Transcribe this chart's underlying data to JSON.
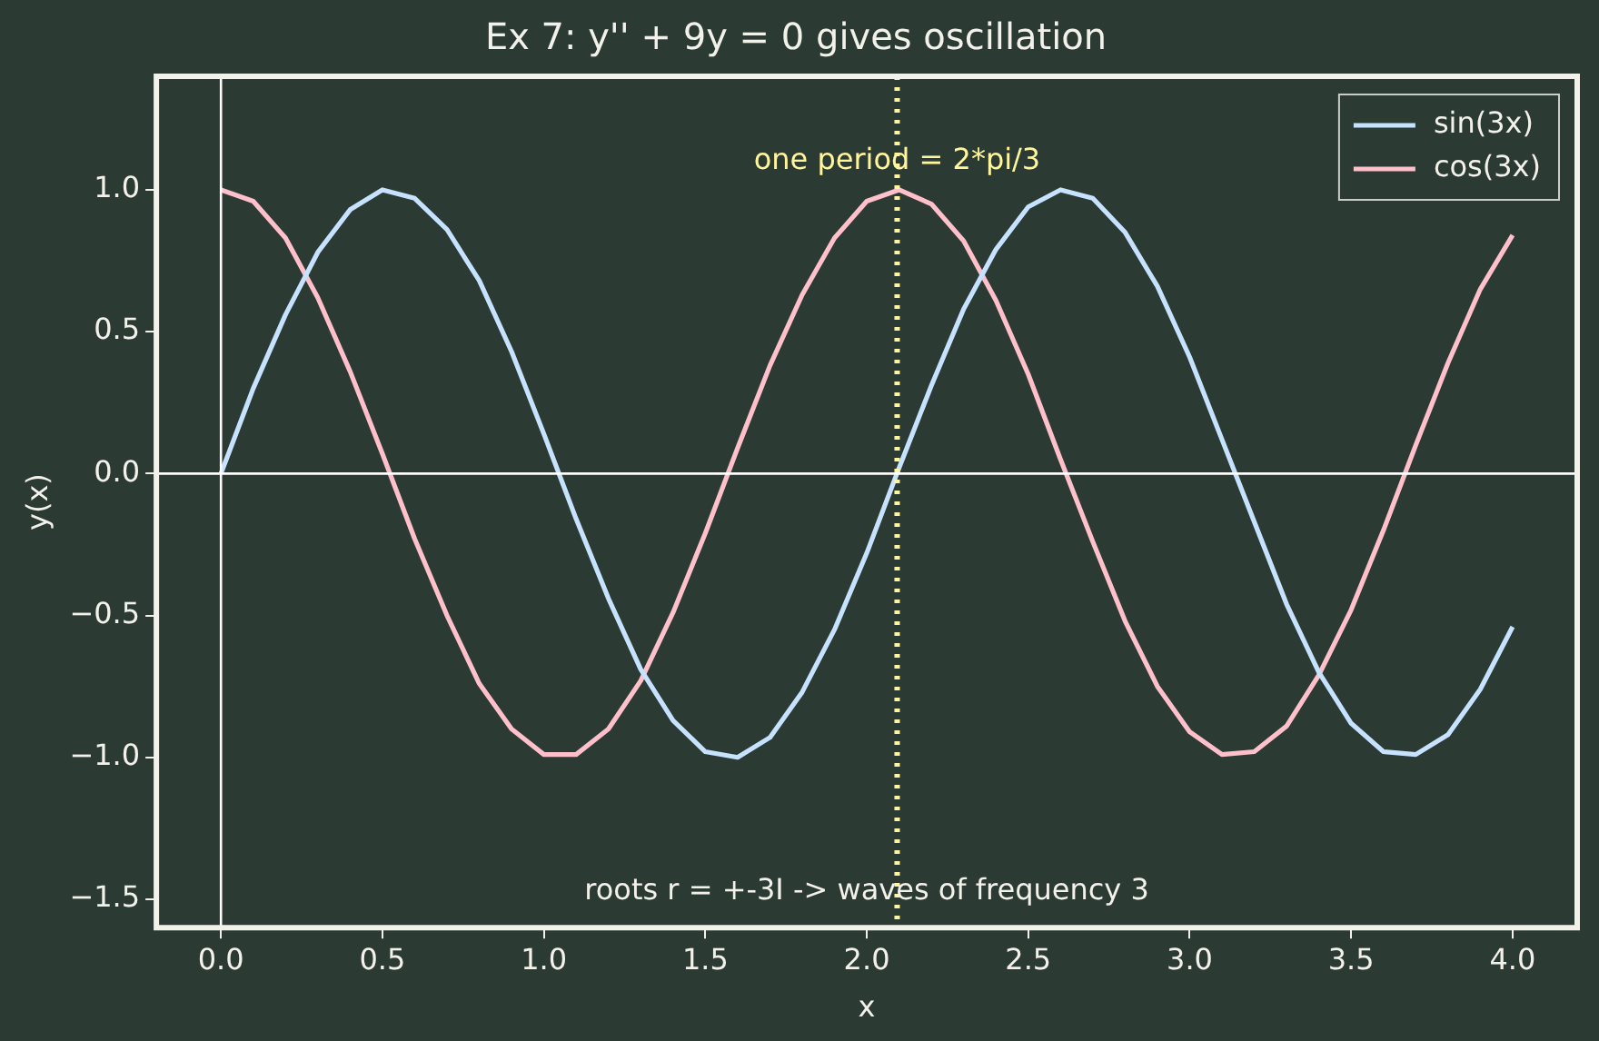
{
  "chart_data": {
    "type": "line",
    "title": "Ex 7: y'' + 9y = 0 gives oscillation",
    "xlabel": "x",
    "ylabel": "y(x)",
    "x": [
      0,
      0.1,
      0.2,
      0.3,
      0.4,
      0.5,
      0.6,
      0.7,
      0.8,
      0.9,
      1,
      1.1,
      1.2,
      1.3,
      1.4,
      1.5,
      1.6,
      1.7,
      1.8,
      1.9,
      2,
      2.1,
      2.2,
      2.3,
      2.4,
      2.5,
      2.6,
      2.7,
      2.8,
      2.9,
      3,
      3.1,
      3.2,
      3.3,
      3.4,
      3.5,
      3.6,
      3.7,
      3.8,
      3.9,
      4
    ],
    "series": [
      {
        "name": "sin(3x)",
        "color": "#c6e2ff",
        "values": [
          0,
          0.3,
          0.56,
          0.78,
          0.93,
          1.0,
          0.97,
          0.86,
          0.68,
          0.43,
          0.14,
          -0.16,
          -0.44,
          -0.69,
          -0.87,
          -0.98,
          -1.0,
          -0.93,
          -0.77,
          -0.55,
          -0.28,
          0.02,
          0.31,
          0.58,
          0.79,
          0.94,
          1.0,
          0.97,
          0.85,
          0.66,
          0.41,
          0.12,
          -0.17,
          -0.46,
          -0.7,
          -0.88,
          -0.98,
          -0.99,
          -0.92,
          -0.76,
          -0.54
        ]
      },
      {
        "name": "cos(3x)",
        "color": "#ffc0cb",
        "values": [
          1,
          0.96,
          0.83,
          0.62,
          0.36,
          0.07,
          -0.23,
          -0.5,
          -0.74,
          -0.9,
          -0.99,
          -0.99,
          -0.9,
          -0.73,
          -0.49,
          -0.21,
          0.09,
          0.38,
          0.63,
          0.83,
          0.96,
          1.0,
          0.95,
          0.82,
          0.61,
          0.35,
          0.05,
          -0.24,
          -0.52,
          -0.75,
          -0.91,
          -0.99,
          -0.98,
          -0.89,
          -0.71,
          -0.48,
          -0.2,
          0.1,
          0.39,
          0.65,
          0.84
        ]
      }
    ],
    "xlim": [
      -0.2,
      4.2
    ],
    "ylim": [
      -1.6,
      1.4
    ],
    "xticks": [
      {
        "value": 0,
        "label": "0.0"
      },
      {
        "value": 0.5,
        "label": "0.5"
      },
      {
        "value": 1,
        "label": "1.0"
      },
      {
        "value": 1.5,
        "label": "1.5"
      },
      {
        "value": 2,
        "label": "2.0"
      },
      {
        "value": 2.5,
        "label": "2.5"
      },
      {
        "value": 3,
        "label": "3.0"
      },
      {
        "value": 3.5,
        "label": "3.5"
      },
      {
        "value": 4,
        "label": "4.0"
      }
    ],
    "yticks": [
      {
        "value": -1.5,
        "label": "−1.5"
      },
      {
        "value": -1,
        "label": "−1.0"
      },
      {
        "value": -0.5,
        "label": "−0.5"
      },
      {
        "value": 0,
        "label": "0.0"
      },
      {
        "value": 0.5,
        "label": "0.5"
      },
      {
        "value": 1,
        "label": "1.0"
      }
    ],
    "ref_lines": [
      {
        "axis": "y",
        "value": 0,
        "color": "#ffffff",
        "line_style": "solid"
      },
      {
        "axis": "x",
        "value": 0,
        "color": "#ffffff",
        "line_style": "solid"
      },
      {
        "axis": "x",
        "value": 2.094,
        "label": "one period = 2*pi/3",
        "color": "#fff59d",
        "line_style": "dotted"
      }
    ],
    "annotations": [
      "roots r = +-3I -> waves of frequency 3"
    ],
    "legend": "top right",
    "grid": false,
    "marker": "none",
    "line_style": "solid"
  }
}
